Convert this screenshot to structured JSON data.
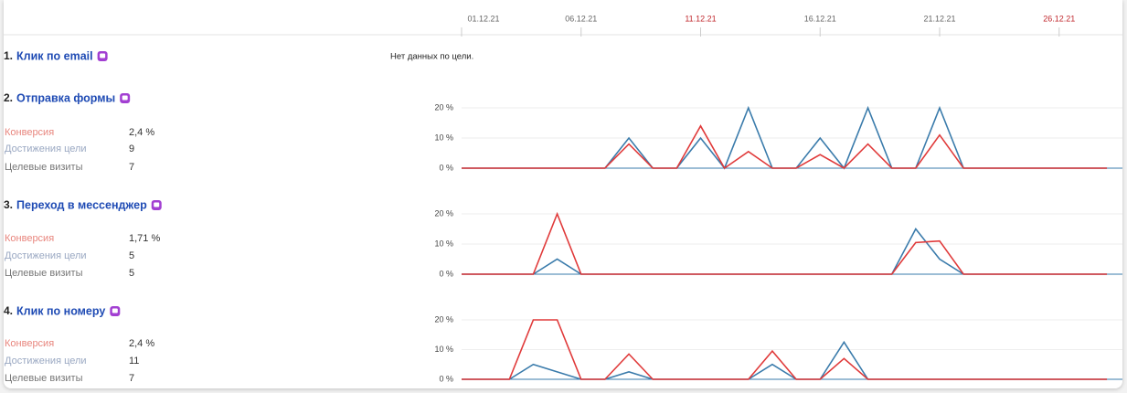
{
  "timeline": {
    "dates": [
      {
        "label": "01.12.21",
        "color": "#666666"
      },
      null,
      null,
      null,
      null,
      {
        "label": "06.12.21",
        "color": "#666666"
      },
      null,
      null,
      null,
      null,
      {
        "label": "11.12.21",
        "color": "#c0282e"
      },
      null,
      null,
      null,
      null,
      {
        "label": "16.12.21",
        "color": "#666666"
      },
      null,
      null,
      null,
      null,
      {
        "label": "21.12.21",
        "color": "#666666"
      },
      null,
      null,
      null,
      null,
      {
        "label": "26.12.21",
        "color": "#c0282e"
      },
      null,
      null
    ]
  },
  "goals": [
    {
      "number": "1.",
      "title": "Клик по email",
      "note": "Нет данных по цели."
    },
    {
      "number": "2.",
      "title": "Отправка формы",
      "stats": [
        {
          "label": "Конверсия",
          "value": "2,4 %",
          "color": "#e8857d"
        },
        {
          "label": "Достижения цели",
          "value": 9,
          "color": "#9aa8c2"
        },
        {
          "label": "Целевые визиты",
          "value": 7,
          "color": "#777777"
        }
      ],
      "chart": {
        "type": "line",
        "ylim": [
          0,
          20
        ],
        "yticks": [
          {
            "value": 0,
            "label": "0 %"
          },
          {
            "value": 10,
            "label": "10 %"
          },
          {
            "value": 20,
            "label": "20 %"
          }
        ],
        "series": [
          {
            "color": "#3a7bab",
            "values": [
              0,
              0,
              0,
              0,
              0,
              0,
              0,
              10,
              0,
              0,
              10,
              0,
              20,
              0,
              0,
              10,
              0,
              20,
              0,
              0,
              20,
              0,
              0,
              0,
              0,
              0,
              0,
              0
            ]
          },
          {
            "color": "#e03a3a",
            "values": [
              0,
              0,
              0,
              0,
              0,
              0,
              0,
              8,
              0,
              0,
              14,
              0,
              5.5,
              0,
              0,
              4.5,
              0,
              8,
              0,
              0,
              11,
              0,
              0,
              0,
              0,
              0,
              0,
              0
            ]
          }
        ]
      }
    },
    {
      "number": "3.",
      "title": "Переход в мессенджер",
      "stats": [
        {
          "label": "Конверсия",
          "value": "1,71 %",
          "color": "#e8857d"
        },
        {
          "label": "Достижения цели",
          "value": 5,
          "color": "#9aa8c2"
        },
        {
          "label": "Целевые визиты",
          "value": 5,
          "color": "#777777"
        }
      ],
      "chart": {
        "type": "line",
        "ylim": [
          0,
          20
        ],
        "yticks": [
          {
            "value": 0,
            "label": "0 %"
          },
          {
            "value": 10,
            "label": "10 %"
          },
          {
            "value": 20,
            "label": "20 %"
          }
        ],
        "series": [
          {
            "color": "#3a7bab",
            "values": [
              0,
              0,
              0,
              0,
              5,
              0,
              0,
              0,
              0,
              0,
              0,
              0,
              0,
              0,
              0,
              0,
              0,
              0,
              0,
              15,
              5,
              0,
              0,
              0,
              0,
              0,
              0,
              0
            ]
          },
          {
            "color": "#e03a3a",
            "values": [
              0,
              0,
              0,
              0,
              20,
              0,
              0,
              0,
              0,
              0,
              0,
              0,
              0,
              0,
              0,
              0,
              0,
              0,
              0,
              10.5,
              11,
              0,
              0,
              0,
              0,
              0,
              0,
              0
            ]
          }
        ]
      }
    },
    {
      "number": "4.",
      "title": "Клик по номеру",
      "stats": [
        {
          "label": "Конверсия",
          "value": "2,4 %",
          "color": "#e8857d"
        },
        {
          "label": "Достижения цели",
          "value": 11,
          "color": "#9aa8c2"
        },
        {
          "label": "Целевые визиты",
          "value": 7,
          "color": "#777777"
        }
      ],
      "chart": {
        "type": "line",
        "ylim": [
          0,
          20
        ],
        "yticks": [
          {
            "value": 0,
            "label": "0 %"
          },
          {
            "value": 10,
            "label": "10 %"
          },
          {
            "value": 20,
            "label": "20 %"
          }
        ],
        "series": [
          {
            "color": "#3a7bab",
            "values": [
              0,
              0,
              0,
              5,
              2.5,
              0,
              0,
              2.5,
              0,
              0,
              0,
              0,
              0,
              5,
              0,
              0,
              12.5,
              0,
              0,
              0,
              0,
              0,
              0,
              0,
              0,
              0,
              0,
              0
            ]
          },
          {
            "color": "#e03a3a",
            "values": [
              0,
              0,
              0,
              20,
              20,
              0,
              0,
              8.5,
              0,
              0,
              0,
              0,
              0,
              9.5,
              0,
              0,
              7,
              0,
              0,
              0,
              0,
              0,
              0,
              0,
              0,
              0,
              0,
              0
            ]
          }
        ]
      }
    }
  ]
}
